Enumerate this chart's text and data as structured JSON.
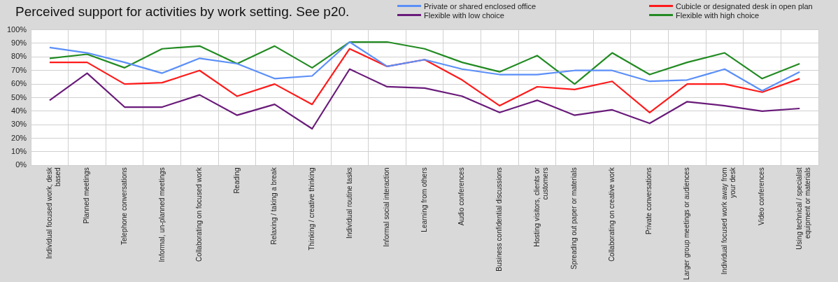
{
  "chart_data": {
    "type": "line",
    "title": "Perceived support for activities by work setting. See p20.",
    "categories": [
      "Individual focused work, desk based",
      "Planned meetings",
      "Telephone conversations",
      "Informal, un-planned meetings",
      "Collaborating on focused work",
      "Reading",
      "Relaxing / taking a break",
      "Thinking / creative thinking",
      "Individual routine tasks",
      "Informal social interaction",
      "Learning from others",
      "Audio conferences",
      "Business confidential discussions",
      "Hosting visitors, clients or customers",
      "Spreading out paper or materials",
      "Collaborating on creative work",
      "Private conversations",
      "Larger group meetings or audiences",
      "Individual focused work away from your desk",
      "Video conferences",
      "Using technical / specialist equipment or materials"
    ],
    "series": [
      {
        "name": "Private or shared enclosed office",
        "color": "#5b8ff9",
        "values": [
          87,
          83,
          76,
          68,
          79,
          75,
          64,
          66,
          91,
          73,
          78,
          71,
          67,
          67,
          70,
          70,
          62,
          63,
          71,
          55,
          69
        ]
      },
      {
        "name": "Cubicle or designated desk in open plan",
        "color": "#ff1a1a",
        "values": [
          76,
          76,
          60,
          61,
          70,
          51,
          60,
          45,
          86,
          73,
          78,
          63,
          44,
          58,
          56,
          62,
          39,
          60,
          60,
          54,
          64
        ]
      },
      {
        "name": "Flexible with low choice",
        "color": "#6a1b7a",
        "values": [
          48,
          68,
          43,
          43,
          52,
          37,
          45,
          27,
          71,
          58,
          57,
          51,
          39,
          48,
          37,
          41,
          31,
          47,
          44,
          40,
          42
        ]
      },
      {
        "name": "Flexible with high choice",
        "color": "#228b22",
        "values": [
          79,
          82,
          72,
          86,
          88,
          75,
          88,
          72,
          91,
          91,
          86,
          76,
          69,
          81,
          60,
          83,
          67,
          76,
          83,
          64,
          75
        ]
      }
    ],
    "ylim": [
      0,
      100
    ],
    "yticks": [
      {
        "value": 0,
        "label": "0%"
      },
      {
        "value": 10,
        "label": "10%"
      },
      {
        "value": 20,
        "label": "20%"
      },
      {
        "value": 30,
        "label": "30%"
      },
      {
        "value": 40,
        "label": "40%"
      },
      {
        "value": 50,
        "label": "50%"
      },
      {
        "value": 60,
        "label": "60%"
      },
      {
        "value": 70,
        "label": "70%"
      },
      {
        "value": 80,
        "label": "80%"
      },
      {
        "value": 90,
        "label": "90%"
      },
      {
        "value": 100,
        "label": "100%"
      }
    ],
    "grid": true,
    "legend": "top right",
    "marker": "none",
    "line_style": "solid"
  }
}
